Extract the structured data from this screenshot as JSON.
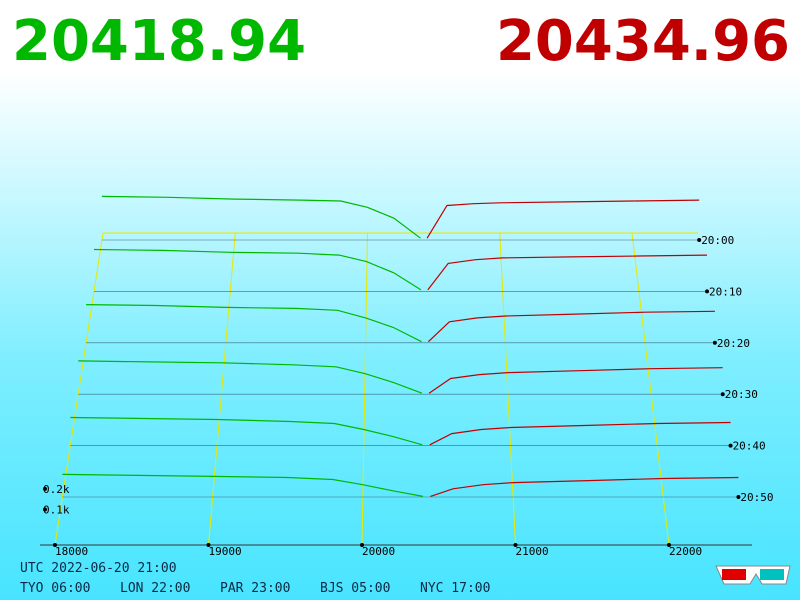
{
  "chart_data": {
    "type": "depth3d",
    "bid": 20418.94,
    "ask": 20434.96,
    "bid_color": "#00b800",
    "ask_color": "#c00000",
    "xticks": [
      18000,
      19000,
      20000,
      21000,
      22000
    ],
    "xlim": [
      18000,
      22500
    ],
    "depth_ticks": [
      {
        "value": 100,
        "label": "0.1k"
      },
      {
        "value": 200,
        "label": "0.2k"
      }
    ],
    "times": [
      "20:00",
      "20:10",
      "20:20",
      "20:30",
      "20:40",
      "20:50"
    ],
    "bid_prices": [
      18000,
      18500,
      19000,
      19500,
      19800,
      20000,
      20200,
      20400
    ],
    "ask_prices": [
      20450,
      20600,
      20800,
      21000,
      21500,
      22000,
      22500
    ],
    "snapshots": [
      {
        "bids": [
          240,
          235,
          225,
          220,
          215,
          180,
          120,
          10
        ],
        "asks": [
          10,
          190,
          200,
          205,
          210,
          215,
          220
        ]
      },
      {
        "bids": [
          225,
          220,
          210,
          205,
          195,
          160,
          100,
          8
        ],
        "asks": [
          8,
          150,
          170,
          180,
          185,
          190,
          195
        ]
      },
      {
        "bids": [
          200,
          195,
          185,
          180,
          170,
          130,
          80,
          6
        ],
        "asks": [
          6,
          110,
          130,
          140,
          150,
          160,
          165
        ]
      },
      {
        "bids": [
          170,
          165,
          160,
          150,
          140,
          105,
          60,
          5
        ],
        "asks": [
          5,
          80,
          100,
          110,
          120,
          130,
          135
        ]
      },
      {
        "bids": [
          140,
          135,
          130,
          120,
          110,
          80,
          45,
          4
        ],
        "asks": [
          4,
          60,
          80,
          90,
          100,
          110,
          115
        ]
      },
      {
        "bids": [
          110,
          105,
          100,
          95,
          85,
          60,
          30,
          3
        ],
        "asks": [
          3,
          40,
          60,
          70,
          80,
          90,
          95
        ]
      }
    ],
    "timestamp": "UTC 2022-06-20 21:00",
    "clocks": [
      "TYO 06:00",
      "LON 22:00",
      "PAR 23:00",
      "BJS 05:00",
      "NYC 17:00"
    ]
  }
}
